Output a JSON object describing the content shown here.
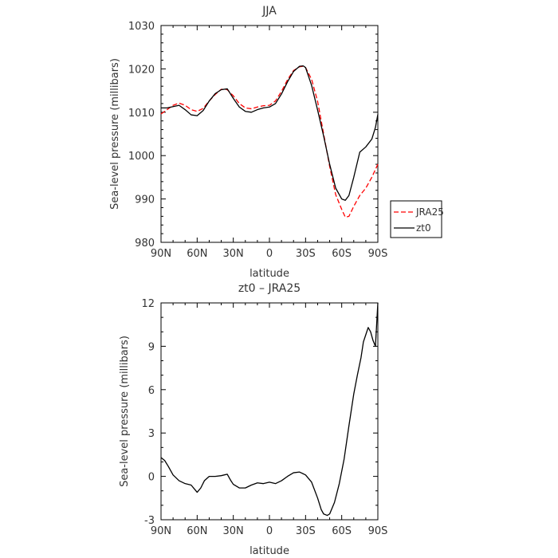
{
  "chart_data": [
    {
      "type": "line",
      "title": "JJA",
      "xlabel": "latitude",
      "ylabel": "Sea-level pressure (millibars)",
      "xlim": [
        90,
        -90
      ],
      "ylim": [
        980,
        1030
      ],
      "x_tick_values": [
        90,
        60,
        30,
        0,
        -30,
        -60,
        -90
      ],
      "x_tick_labels": [
        "90N",
        "60N",
        "30N",
        "0",
        "30S",
        "60S",
        "90S"
      ],
      "y_tick_values": [
        980,
        990,
        1000,
        1010,
        1020,
        1030
      ],
      "y_tick_labels": [
        "980",
        "990",
        "1000",
        "1010",
        "1020",
        "1030"
      ],
      "grid": false,
      "legend_position": "right, outside, bottom",
      "series": [
        {
          "name": "JRA25",
          "color": "#ff0000",
          "dash": "dashed",
          "x": [
            90,
            85,
            80,
            75,
            70,
            65,
            60,
            55,
            50,
            45,
            40,
            35,
            30,
            25,
            20,
            15,
            10,
            5,
            0,
            -5,
            -10,
            -15,
            -20,
            -25,
            -28,
            -30,
            -35,
            -40,
            -45,
            -50,
            -55,
            -60,
            -63,
            -66,
            -70,
            -75,
            -80,
            -85,
            -90
          ],
          "y": [
            1009.6,
            1010.6,
            1011.6,
            1012.1,
            1011.6,
            1010.6,
            1010.2,
            1010.9,
            1012.6,
            1014.1,
            1015.3,
            1015.2,
            1013.8,
            1012.0,
            1011.0,
            1010.8,
            1011.2,
            1011.5,
            1011.6,
            1012.6,
            1014.8,
            1017.5,
            1019.6,
            1020.5,
            1020.6,
            1020.3,
            1017.6,
            1012.5,
            1005.0,
            997.5,
            991.0,
            987.6,
            985.8,
            986.0,
            988.3,
            990.8,
            992.5,
            995.0,
            998.0
          ]
        },
        {
          "name": "zt0",
          "color": "#000000",
          "dash": "solid",
          "x": [
            90,
            85,
            80,
            75,
            70,
            65,
            60,
            55,
            50,
            45,
            40,
            35,
            30,
            25,
            20,
            15,
            10,
            5,
            0,
            -5,
            -10,
            -15,
            -20,
            -25,
            -28,
            -30,
            -35,
            -40,
            -45,
            -50,
            -55,
            -60,
            -63,
            -66,
            -70,
            -75,
            -80,
            -85,
            -88,
            -90
          ],
          "y": [
            1011.0,
            1011.0,
            1011.3,
            1011.6,
            1010.6,
            1009.4,
            1009.2,
            1010.4,
            1012.6,
            1014.3,
            1015.2,
            1015.4,
            1013.2,
            1011.2,
            1010.2,
            1010.0,
            1010.6,
            1011.0,
            1011.2,
            1012.0,
            1014.2,
            1017.0,
            1019.4,
            1020.6,
            1020.7,
            1020.3,
            1016.2,
            1010.5,
            1004.5,
            998.0,
            992.5,
            990.0,
            989.7,
            990.8,
            995.0,
            1000.8,
            1002.0,
            1003.8,
            1006.5,
            1009.5
          ]
        }
      ]
    },
    {
      "type": "line",
      "title": "zt0 – JRA25",
      "xlabel": "latitude",
      "ylabel": "Sea-level pressure (millibars)",
      "xlim": [
        90,
        -90
      ],
      "ylim": [
        -3,
        12
      ],
      "x_tick_values": [
        90,
        60,
        30,
        0,
        -30,
        -60,
        -90
      ],
      "x_tick_labels": [
        "90N",
        "60N",
        "30N",
        "0",
        "30S",
        "60S",
        "90S"
      ],
      "y_tick_values": [
        -3,
        0,
        3,
        6,
        9,
        12
      ],
      "y_tick_labels": [
        "-3",
        "0",
        "3",
        "6",
        "9",
        "12"
      ],
      "grid": false,
      "series": [
        {
          "color": "#000000",
          "dash": "solid",
          "x": [
            90,
            87,
            84,
            80,
            75,
            70,
            65,
            62,
            60,
            57,
            54,
            50,
            45,
            40,
            35,
            32,
            30,
            25,
            20,
            15,
            10,
            5,
            0,
            -5,
            -10,
            -15,
            -20,
            -25,
            -30,
            -35,
            -40,
            -43,
            -45,
            -48,
            -50,
            -54,
            -58,
            -62,
            -66,
            -70,
            -73,
            -76,
            -78,
            -80,
            -82,
            -84,
            -86,
            -88,
            -90
          ],
          "y": [
            1.3,
            1.1,
            0.7,
            0.1,
            -0.3,
            -0.5,
            -0.6,
            -0.9,
            -1.1,
            -0.8,
            -0.3,
            0.0,
            0.0,
            0.05,
            0.15,
            -0.3,
            -0.55,
            -0.8,
            -0.8,
            -0.6,
            -0.45,
            -0.5,
            -0.4,
            -0.5,
            -0.3,
            0.0,
            0.25,
            0.3,
            0.1,
            -0.4,
            -1.5,
            -2.3,
            -2.6,
            -2.7,
            -2.6,
            -1.8,
            -0.5,
            1.2,
            3.5,
            5.7,
            7.0,
            8.2,
            9.3,
            9.8,
            10.3,
            10.0,
            9.4,
            9.0,
            12.0
          ]
        }
      ]
    }
  ]
}
